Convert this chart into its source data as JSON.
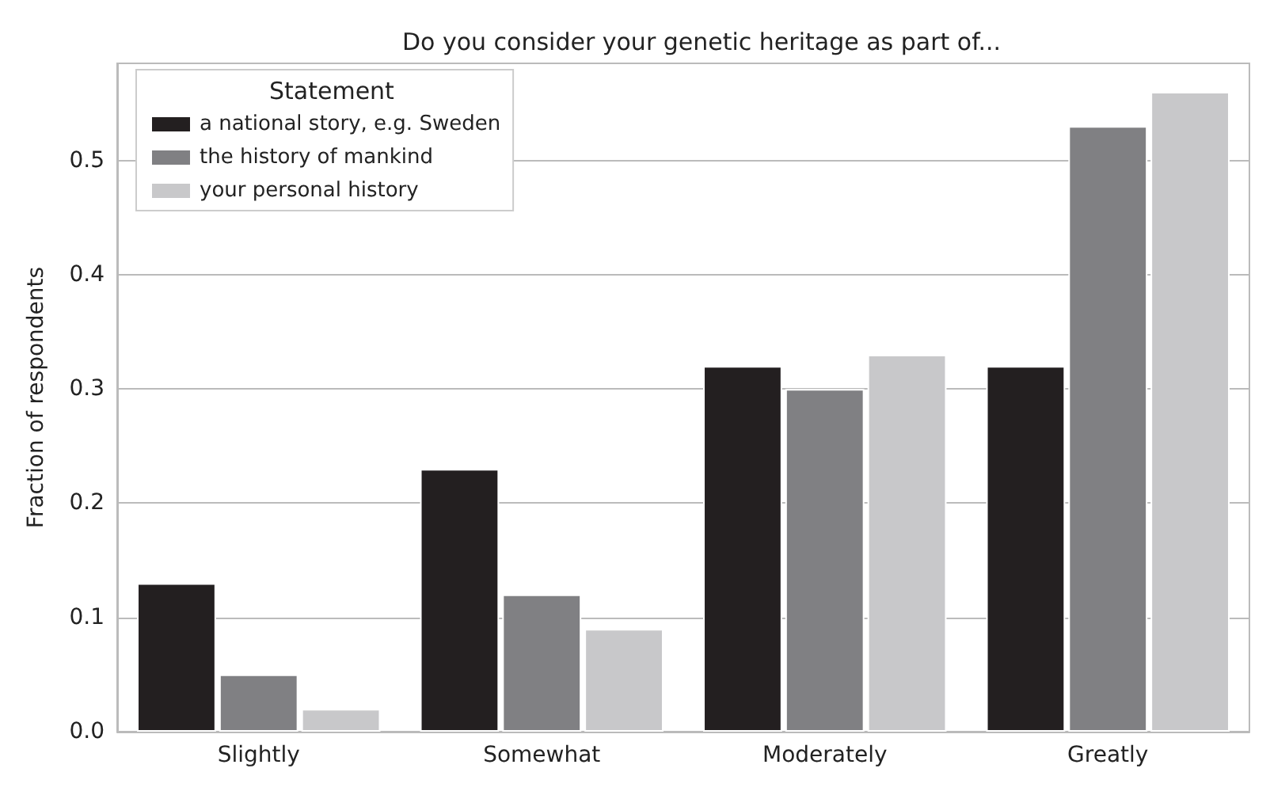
{
  "chart_data": {
    "type": "bar",
    "title": "Do you consider your genetic heritage as part of...",
    "ylabel": "Fraction of respondents",
    "legend_title": "Statement",
    "categories": [
      "Slightly",
      "Somewhat",
      "Moderately",
      "Greatly"
    ],
    "series": [
      {
        "name": "a national story, e.g. Sweden",
        "color": "#231f20",
        "values": [
          0.13,
          0.23,
          0.32,
          0.32
        ]
      },
      {
        "name": "the history of mankind",
        "color": "#808083",
        "values": [
          0.05,
          0.12,
          0.3,
          0.53
        ]
      },
      {
        "name": "your personal history",
        "color": "#c8c8ca",
        "values": [
          0.02,
          0.09,
          0.33,
          0.56
        ]
      }
    ],
    "ylim": [
      0,
      0.585
    ],
    "yticks": [
      {
        "value": 0,
        "label": "0.0"
      },
      {
        "value": 0.1,
        "label": "0.1"
      },
      {
        "value": 0.2,
        "label": "0.2"
      },
      {
        "value": 0.3,
        "label": "0.3"
      },
      {
        "value": 0.4,
        "label": "0.4"
      },
      {
        "value": 0.5,
        "label": "0.5"
      }
    ],
    "grid": "y",
    "legend": "top left"
  }
}
